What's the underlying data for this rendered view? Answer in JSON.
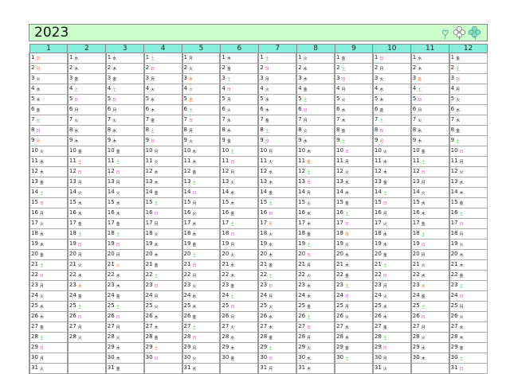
{
  "title": "2023",
  "colors": {
    "sunday": "#e050d0",
    "saturday": "#40c840",
    "holiday": "#f07030",
    "header": "#88eedd",
    "title_bg": "#ccffcc"
  },
  "decoration_icons": [
    "heart-leaf-icon",
    "flower-icon",
    "clover-icon"
  ],
  "months": [
    {
      "label": "1",
      "weekdays": "日月火水木金土日月火水木金土日月火水木金土日月火水木金土日月火",
      "holidays": [
        1,
        2,
        9
      ]
    },
    {
      "label": "2",
      "weekdays": "水木金土日月火水木金土日月火水木金土日月火水木金土日月火",
      "holidays": [
        11,
        23
      ]
    },
    {
      "label": "3",
      "weekdays": "水木金土日月火水木金土日月火水木金土日月火水木金土日月火水木金",
      "holidays": [
        21
      ]
    },
    {
      "label": "4",
      "weekdays": "土日月火水木金土日月火水木金土日月火水木金土日月火水木金土日",
      "holidays": [
        29
      ]
    },
    {
      "label": "5",
      "weekdays": "月火水木金土日月火水木金土日月火水木金土日月火水木金土日月火水",
      "holidays": [
        3,
        4,
        5
      ]
    },
    {
      "label": "6",
      "weekdays": "木金土日月火水木金土日月火水木金土日月火水木金土日月火水木金",
      "holidays": []
    },
    {
      "label": "7",
      "weekdays": "土日月火水木金土日月火水木金土日月火水木金土日月火水木金土日月",
      "holidays": [
        17
      ]
    },
    {
      "label": "8",
      "weekdays": "火水木金土日月火水木金土日月火水木金土日月火水木金土日月火水木",
      "holidays": [
        11
      ]
    },
    {
      "label": "9",
      "weekdays": "金土日月火水木金土日月火水木金土日月火水木金土日月火水木金土",
      "holidays": [
        18,
        23
      ]
    },
    {
      "label": "10",
      "weekdays": "日月火水木金土日月火水木金土日月火水木金土日月火水木金土日月火",
      "holidays": [
        9
      ]
    },
    {
      "label": "11",
      "weekdays": "水木金土日月火水木金土日月火水木金土日月火水木金土日月火水木",
      "holidays": [
        3,
        23
      ]
    },
    {
      "label": "12",
      "weekdays": "金土日月火水木金土日月火水木金土日月火水木金土日月火水木金土日",
      "holidays": []
    }
  ]
}
